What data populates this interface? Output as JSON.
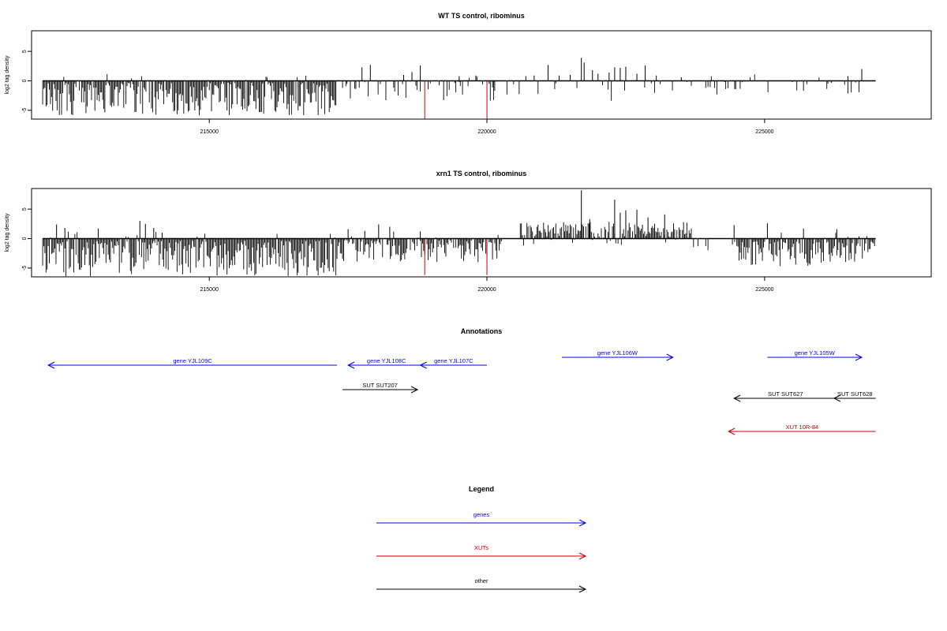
{
  "chart_data": [
    {
      "type": "bar",
      "title": "WT TS control, ribominus",
      "ylabel": "log2 tag density",
      "xlim": [
        211800,
        228000
      ],
      "ylim": [
        -6.5,
        8.5
      ],
      "x_ticks": [
        215000,
        220000,
        225000
      ],
      "y_ticks": [
        -5,
        0,
        5
      ],
      "series_color": "#000000",
      "highlight_color": "#cc0000",
      "segments": [
        {
          "start": 212000,
          "end": 217300,
          "level": -0.35,
          "amplitude": 5.5,
          "density": 0.95
        },
        {
          "start": 217300,
          "end": 220300,
          "level": -0.2,
          "amplitude": 3.2,
          "density": 0.25
        },
        {
          "start": 220300,
          "end": 223500,
          "level": 0.1,
          "amplitude": 3.5,
          "density": 0.15
        },
        {
          "start": 223500,
          "end": 227000,
          "level": -0.2,
          "amplitude": 2.5,
          "density": 0.18
        }
      ],
      "peaks": [
        {
          "x": 217750,
          "y": 2.3
        },
        {
          "x": 217900,
          "y": 2.7
        },
        {
          "x": 218500,
          "y": 1.0
        },
        {
          "x": 218650,
          "y": 1.5
        },
        {
          "x": 218800,
          "y": 2.6
        },
        {
          "x": 219500,
          "y": 0.8
        },
        {
          "x": 219800,
          "y": 0.9
        },
        {
          "x": 220700,
          "y": 0.8
        },
        {
          "x": 220850,
          "y": 0.9
        },
        {
          "x": 221100,
          "y": 2.7
        },
        {
          "x": 221300,
          "y": 0.9
        },
        {
          "x": 221500,
          "y": 1.0
        },
        {
          "x": 221700,
          "y": 3.9
        },
        {
          "x": 221750,
          "y": 3.1
        },
        {
          "x": 221900,
          "y": 1.8
        },
        {
          "x": 222000,
          "y": 1.2
        },
        {
          "x": 222200,
          "y": 1.4
        },
        {
          "x": 222300,
          "y": 2.3
        },
        {
          "x": 222400,
          "y": 2.2
        },
        {
          "x": 222500,
          "y": 2.4
        },
        {
          "x": 222700,
          "y": 1.2
        },
        {
          "x": 222850,
          "y": 2.6
        },
        {
          "x": 223050,
          "y": 0.9
        },
        {
          "x": 223500,
          "y": 0.6
        },
        {
          "x": 226500,
          "y": 0.8
        },
        {
          "x": 226750,
          "y": 2.0
        }
      ],
      "highlights": [
        {
          "x": 218880,
          "y": -6.4
        },
        {
          "x": 220000,
          "y": -6.4
        }
      ]
    },
    {
      "type": "bar",
      "title": "xrn1 TS control, ribominus",
      "ylabel": "log2 tag density",
      "xlim": [
        211800,
        228000
      ],
      "ylim": [
        -6.5,
        8.5
      ],
      "x_ticks": [
        215000,
        220000,
        225000
      ],
      "y_ticks": [
        -5,
        0,
        5
      ],
      "series_color": "#000000",
      "highlight_color": "#cc0000",
      "segments": [
        {
          "start": 212000,
          "end": 217300,
          "level": -0.4,
          "amplitude": 6.0,
          "density": 1.0
        },
        {
          "start": 217300,
          "end": 220300,
          "level": -0.3,
          "amplitude": 4.0,
          "density": 0.8
        },
        {
          "start": 220600,
          "end": 223700,
          "level": 0.9,
          "amplitude": 3.4,
          "density": 1.0
        },
        {
          "start": 223700,
          "end": 224500,
          "level": 0.0,
          "amplitude": 2.0,
          "density": 0.2
        },
        {
          "start": 224500,
          "end": 227000,
          "level": -0.5,
          "amplitude": 4.2,
          "density": 0.9
        }
      ],
      "peaks": [
        {
          "x": 212250,
          "y": 2.4
        },
        {
          "x": 212400,
          "y": 1.8
        },
        {
          "x": 213000,
          "y": 1.7
        },
        {
          "x": 213750,
          "y": 3.0
        },
        {
          "x": 213850,
          "y": 2.5
        },
        {
          "x": 214000,
          "y": 1.8
        },
        {
          "x": 214150,
          "y": 1.0
        },
        {
          "x": 217500,
          "y": 1.6
        },
        {
          "x": 217800,
          "y": 1.3
        },
        {
          "x": 218050,
          "y": 2.4
        },
        {
          "x": 218250,
          "y": 2.0
        },
        {
          "x": 218800,
          "y": 1.2
        },
        {
          "x": 221700,
          "y": 8.2
        },
        {
          "x": 221850,
          "y": 3.3
        },
        {
          "x": 222300,
          "y": 6.6
        },
        {
          "x": 222400,
          "y": 4.4
        },
        {
          "x": 222500,
          "y": 4.8
        },
        {
          "x": 222700,
          "y": 4.9
        },
        {
          "x": 222900,
          "y": 3.6
        },
        {
          "x": 223200,
          "y": 4.1
        },
        {
          "x": 224450,
          "y": 2.3
        },
        {
          "x": 225050,
          "y": 2.6
        },
        {
          "x": 225700,
          "y": 1.7
        },
        {
          "x": 226300,
          "y": 1.6
        }
      ],
      "highlights": [
        {
          "x": 218880,
          "y": -6.2
        },
        {
          "x": 220000,
          "y": -6.2
        }
      ]
    }
  ],
  "annotations": {
    "title": "Annotations",
    "items": [
      {
        "label": "gene YJL109C",
        "start": 217300,
        "end": 212100,
        "track": 2,
        "color": "#0000ff"
      },
      {
        "label": "gene YJL108C",
        "start": 218880,
        "end": 217500,
        "track": 2,
        "color": "#0000ff"
      },
      {
        "label": "gene YJL107C",
        "start": 220000,
        "end": 218800,
        "track": 2,
        "color": "#0000ff"
      },
      {
        "label": "gene YJL106W",
        "start": 221350,
        "end": 223350,
        "track": 1,
        "color": "#0000ff"
      },
      {
        "label": "gene YJL105W",
        "start": 225050,
        "end": 226750,
        "track": 1,
        "color": "#0000ff"
      },
      {
        "label": "SUT SUT207",
        "start": 217400,
        "end": 218750,
        "track": 3,
        "color": "#000000"
      },
      {
        "label": "SUT SUT627",
        "start": 226300,
        "end": 224450,
        "track": 4,
        "color": "#000000"
      },
      {
        "label": "SUT SUT628",
        "start": 227000,
        "end": 226250,
        "track": 4,
        "color": "#000000"
      },
      {
        "label": "XUT 10R-84",
        "start": 227000,
        "end": 224350,
        "track": 5,
        "color": "#cc0000"
      }
    ]
  },
  "legend": {
    "title": "Legend",
    "items": [
      {
        "label": "genes",
        "color": "#0000ff"
      },
      {
        "label": "XUTs",
        "color": "#cc0000"
      },
      {
        "label": "other",
        "color": "#000000"
      }
    ]
  }
}
